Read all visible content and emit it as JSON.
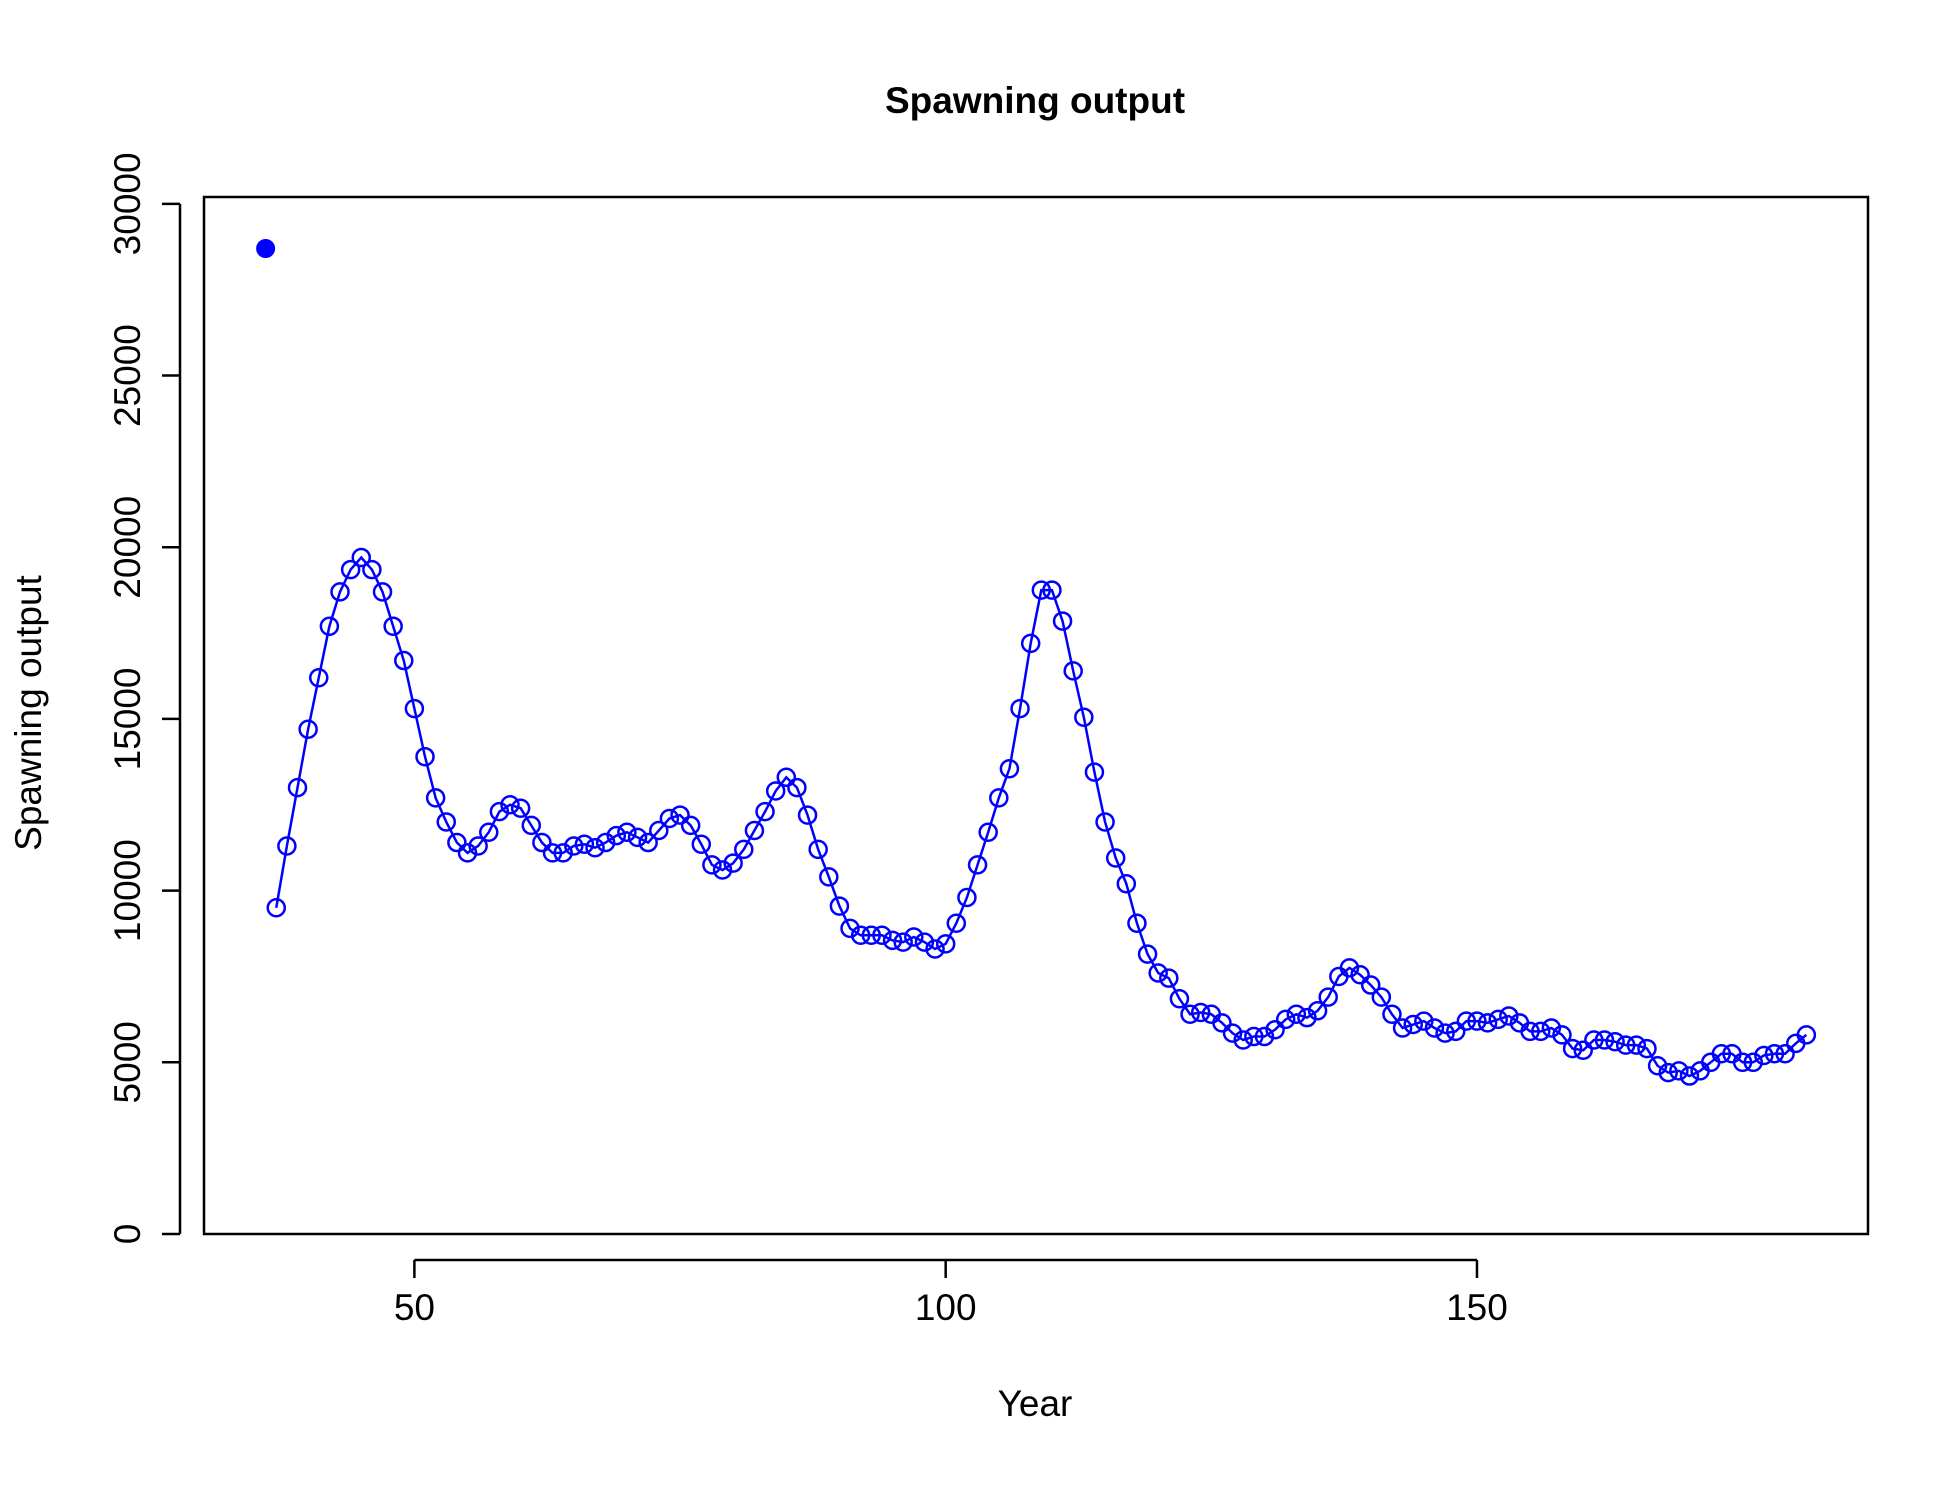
{
  "chart_data": {
    "type": "line",
    "title": "Spawning output",
    "x_label": "Year",
    "y_label": "Spawning output",
    "xlim": [
      30.2,
      186.8
    ],
    "xticks": [
      50,
      100,
      150
    ],
    "ylim": [
      0,
      30200
    ],
    "yticks": [
      0,
      5000,
      10000,
      15000,
      20000,
      25000,
      30000
    ],
    "series": [
      {
        "color": "#0000ff",
        "marker": "filled",
        "line": false,
        "x": [
          36
        ],
        "values": [
          28700
        ]
      },
      {
        "color": "#0000ff",
        "marker": "open",
        "line": true,
        "x": [
          37,
          38,
          39,
          40,
          41,
          42,
          43,
          44,
          45,
          46,
          47,
          48,
          49,
          50,
          51,
          52,
          53,
          54,
          55,
          56,
          57,
          58,
          59,
          60,
          61,
          62,
          63,
          64,
          65,
          66,
          67,
          68,
          69,
          70,
          71,
          72,
          73,
          74,
          75,
          76,
          77,
          78,
          79,
          80,
          81,
          82,
          83,
          84,
          85,
          86,
          87,
          88,
          89,
          90,
          91,
          92,
          93,
          94,
          95,
          96,
          97,
          98,
          99,
          100,
          101,
          102,
          103,
          104,
          105,
          106,
          107,
          108,
          109,
          110,
          111,
          112,
          113,
          114,
          115,
          116,
          117,
          118,
          119,
          120,
          121,
          122,
          123,
          124,
          125,
          126,
          127,
          128,
          129,
          130,
          131,
          132,
          133,
          134,
          135,
          136,
          137,
          138,
          139,
          140,
          141,
          142,
          143,
          144,
          145,
          146,
          147,
          148,
          149,
          150,
          151,
          152,
          153,
          154,
          155,
          156,
          157,
          158,
          159,
          160,
          161,
          162,
          163,
          164,
          165,
          166,
          167,
          168,
          169,
          170,
          171,
          172,
          173,
          174,
          175,
          176,
          177,
          178,
          179,
          180,
          181
        ],
        "values": [
          9500,
          11300,
          13000,
          14700,
          16200,
          17700,
          18700,
          19350,
          19700,
          19350,
          18700,
          17700,
          16700,
          15300,
          13900,
          12700,
          12000,
          11400,
          11100,
          11300,
          11700,
          12300,
          12500,
          12400,
          11900,
          11400,
          11100,
          11100,
          11300,
          11350,
          11250,
          11400,
          11600,
          11700,
          11550,
          11400,
          11750,
          12100,
          12200,
          11900,
          11350,
          10750,
          10600,
          10800,
          11200,
          11750,
          12300,
          12900,
          13300,
          13000,
          12200,
          11200,
          10400,
          9550,
          8900,
          8700,
          8700,
          8700,
          8550,
          8500,
          8650,
          8500,
          8300,
          8450,
          9050,
          9800,
          10750,
          11700,
          12700,
          13550,
          15300,
          17200,
          18750,
          18750,
          17850,
          16400,
          15050,
          13450,
          12000,
          10950,
          10200,
          9050,
          8150,
          7600,
          7450,
          6850,
          6400,
          6450,
          6400,
          6150,
          5850,
          5650,
          5750,
          5750,
          5950,
          6250,
          6400,
          6300,
          6500,
          6900,
          7500,
          7750,
          7550,
          7250,
          6900,
          6400,
          6000,
          6100,
          6200,
          6000,
          5850,
          5900,
          6200,
          6200,
          6150,
          6250,
          6350,
          6150,
          5900,
          5900,
          6000,
          5800,
          5400,
          5350,
          5650,
          5650,
          5600,
          5500,
          5500,
          5400,
          4900,
          4700,
          4750,
          4600,
          4750,
          5000,
          5250,
          5250,
          5000,
          5000,
          5200,
          5250,
          5250,
          5550,
          5800
        ]
      }
    ]
  }
}
